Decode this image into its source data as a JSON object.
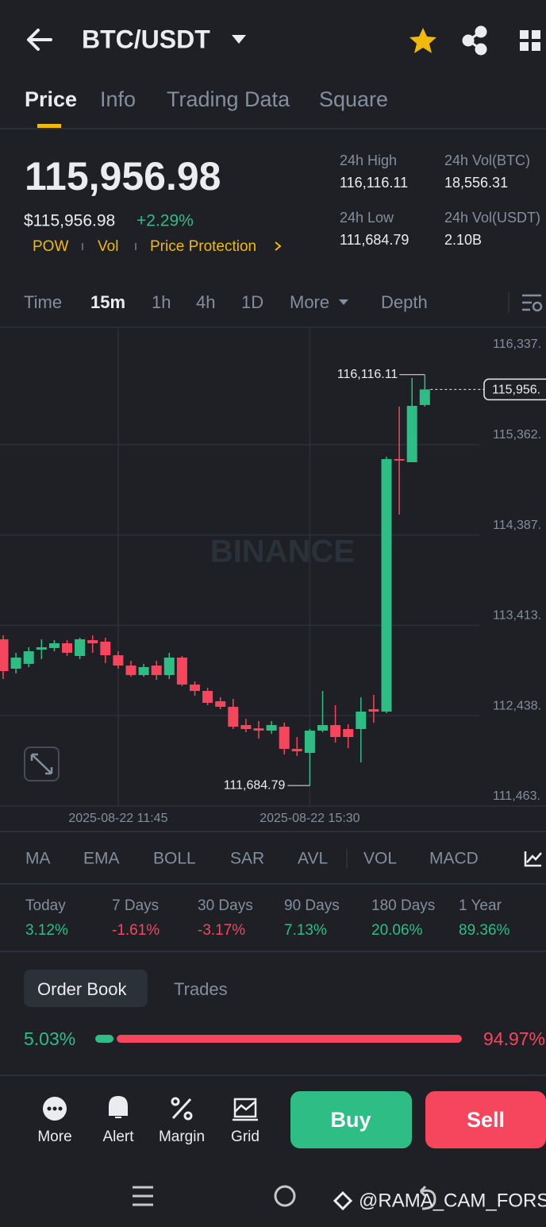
{
  "header": {
    "title": "BTC/USDT"
  },
  "tabs": [
    "Price",
    "Info",
    "Trading Data",
    "Square"
  ],
  "ticker": {
    "price": "115,956.98",
    "price_usd": "$115,956.98",
    "change": "+2.29%",
    "tags": [
      "POW",
      "Vol",
      "Price Protection"
    ],
    "stats": [
      {
        "label": "24h High",
        "value": "116,116.11"
      },
      {
        "label": "24h Vol(BTC)",
        "value": "18,556.31"
      },
      {
        "label": "24h Low",
        "value": "111,684.79"
      },
      {
        "label": "24h Vol(USDT)",
        "value": "2.10B"
      }
    ]
  },
  "intervals": [
    "Time",
    "15m",
    "1h",
    "4h",
    "1D",
    "More",
    "Depth"
  ],
  "chart_data": {
    "type": "candlestick",
    "watermark": "BINANCE",
    "categories": [
      null,
      null,
      null,
      null,
      null,
      null,
      null,
      null,
      null,
      "2025-08-22 11:45",
      null,
      null,
      null,
      null,
      null,
      null,
      null,
      null,
      null,
      null,
      null,
      null,
      null,
      null,
      "2025-08-22 15:30",
      null,
      null,
      null,
      null,
      null,
      null,
      null,
      null,
      null
    ],
    "open": [
      113262,
      112945,
      112997,
      113150,
      113168,
      113219,
      113082,
      113253,
      113236,
      113090,
      112979,
      112876,
      112979,
      112876,
      113065,
      112774,
      112705,
      112594,
      112534,
      112337,
      112302,
      112277,
      112319,
      112080,
      112037,
      112277,
      112337,
      112294,
      112294,
      112508,
      112482,
      115206,
      115172,
      115789
    ],
    "high": [
      113305,
      113116,
      113176,
      113262,
      113253,
      113253,
      113279,
      113305,
      113279,
      113133,
      113031,
      112997,
      113031,
      113116,
      113082,
      112808,
      112739,
      112637,
      112619,
      112405,
      112380,
      112380,
      112362,
      112208,
      112294,
      112705,
      112551,
      112345,
      112637,
      112662,
      115232,
      115772,
      116080,
      116116.11
    ],
    "low": [
      112833,
      112893,
      112962,
      113048,
      113133,
      113082,
      113048,
      113116,
      113005,
      112945,
      112859,
      112859,
      112825,
      112833,
      112757,
      112654,
      112551,
      112508,
      112294,
      112260,
      112191,
      112243,
      112020,
      112003,
      111684.79,
      112260,
      112148,
      112088,
      111934,
      112362,
      112465,
      114607,
      115172,
      115772
    ],
    "close": [
      112919,
      113065,
      113133,
      113176,
      113219,
      113116,
      113262,
      113219,
      113090,
      112979,
      112876,
      112962,
      112876,
      113065,
      112774,
      112705,
      112577,
      112534,
      112319,
      112294,
      112277,
      112337,
      112080,
      112054,
      112277,
      112337,
      112208,
      112208,
      112482,
      112482,
      115206,
      115189,
      115780,
      115956.98
    ],
    "up_color": "#2ebd85",
    "down_color": "#f6465d",
    "ylim": [
      111463,
      116337
    ],
    "yticks": [
      {
        "value": 116337,
        "label": "116,337."
      },
      {
        "value": 115362,
        "label": "115,362."
      },
      {
        "value": 114387,
        "label": "114,387."
      },
      {
        "value": 113413,
        "label": "113,413."
      },
      {
        "value": 112438,
        "label": "112,438."
      },
      {
        "value": 111463,
        "label": "111,463."
      }
    ],
    "high_label": "116,116.11",
    "low_label": "111,684.79",
    "current_label": "115,956."
  },
  "indicators": [
    "MA",
    "EMA",
    "BOLL",
    "SAR",
    "AVL",
    "VOL",
    "MACD"
  ],
  "performance": [
    {
      "period": "Today",
      "change": "3.12%"
    },
    {
      "period": "7 Days",
      "change": "-1.61%"
    },
    {
      "period": "30 Days",
      "change": "-3.17%"
    },
    {
      "period": "90 Days",
      "change": "7.13%"
    },
    {
      "period": "180 Days",
      "change": "20.06%"
    },
    {
      "period": "1 Year",
      "change": "89.36%"
    }
  ],
  "order_book": {
    "tabs": [
      "Order Book",
      "Trades"
    ],
    "values": [
      5.03,
      94.97
    ],
    "value_labels": [
      "5.03%",
      "94.97%"
    ]
  },
  "actions": [
    "More",
    "Alert",
    "Margin",
    "Grid"
  ],
  "buttons": [
    "Buy",
    "Sell"
  ],
  "watermark": "@RAMA_CAM_FORS"
}
